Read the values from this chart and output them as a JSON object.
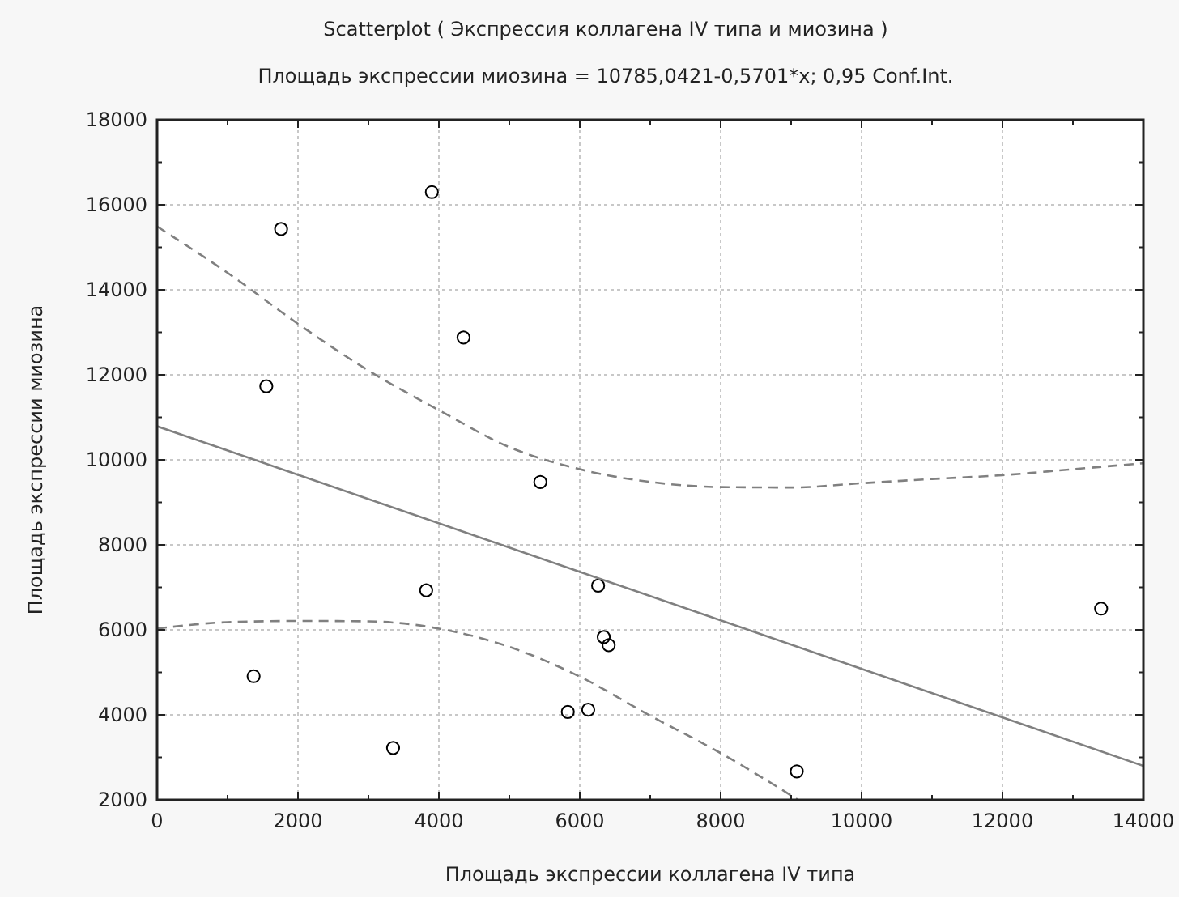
{
  "chart_data": {
    "type": "scatter",
    "title": "Scatterplot ( Экспрессия  коллагена  IV  типа  и миозина )",
    "subtitle": "Площадь   экспрессии  миозина  = 10785,0421-0,5701*x; 0,95 Conf.Int.",
    "xlabel": "Площадь  экспрессии  коллагена  IV  типа",
    "ylabel": "Площадь  экспрессии  миозина",
    "xlim": [
      0,
      14000
    ],
    "ylim": [
      2000,
      18000
    ],
    "xticks": [
      0,
      {
        "value": 1000,
        "label": null
      },
      2000,
      {
        "value": 3000,
        "label": null
      },
      4000,
      {
        "value": 5000,
        "label": null
      },
      6000,
      {
        "value": 7000,
        "label": null
      },
      8000,
      {
        "value": 9000,
        "label": null
      },
      10000,
      {
        "value": 11000,
        "label": null
      },
      12000,
      {
        "value": 13000,
        "label": null
      },
      14000
    ],
    "yticks": [
      2000,
      {
        "value": 3000,
        "label": null
      },
      4000,
      {
        "value": 5000,
        "label": null
      },
      6000,
      {
        "value": 7000,
        "label": null
      },
      8000,
      {
        "value": 9000,
        "label": null
      },
      10000,
      {
        "value": 11000,
        "label": null
      },
      12000,
      {
        "value": 13000,
        "label": null
      },
      14000,
      {
        "value": 15000,
        "label": null
      },
      16000,
      {
        "value": 17000,
        "label": null
      },
      18000
    ],
    "grid": true,
    "series": [
      {
        "type": "scatter",
        "color": "#000000",
        "marker": "circle",
        "x": [
          3900,
          1760,
          4350,
          1550,
          5440,
          3820,
          6260,
          6340,
          6410,
          1370,
          5830,
          6120,
          3350,
          9080,
          13400
        ],
        "values": [
          16300,
          15430,
          12880,
          11730,
          9480,
          6930,
          7040,
          5830,
          5640,
          4910,
          4070,
          4120,
          3220,
          2670,
          6500
        ]
      },
      {
        "type": "line",
        "color": "#808080",
        "line_style": "solid",
        "x": [
          0,
          14000
        ],
        "values": [
          10790,
          2800
        ]
      },
      {
        "type": "line",
        "color": "#808080",
        "line_style": "dashed",
        "x": [
          0,
          1000,
          2000,
          3000,
          4000,
          5000,
          6000,
          7000,
          8000,
          9000,
          10000,
          11000,
          12000,
          13000,
          14000
        ],
        "values": [
          15490,
          14400,
          13200,
          12100,
          11170,
          10300,
          9780,
          9480,
          9360,
          9350,
          9450,
          9550,
          9640,
          9780,
          9920
        ]
      },
      {
        "type": "line",
        "color": "#808080",
        "line_style": "dashed",
        "x": [
          0,
          1000,
          2000,
          3000,
          4000,
          5000,
          6000,
          7000,
          8000,
          9100
        ],
        "values": [
          6030,
          6180,
          6210,
          6200,
          6030,
          5600,
          4900,
          3980,
          3100,
          2000
        ]
      }
    ]
  }
}
